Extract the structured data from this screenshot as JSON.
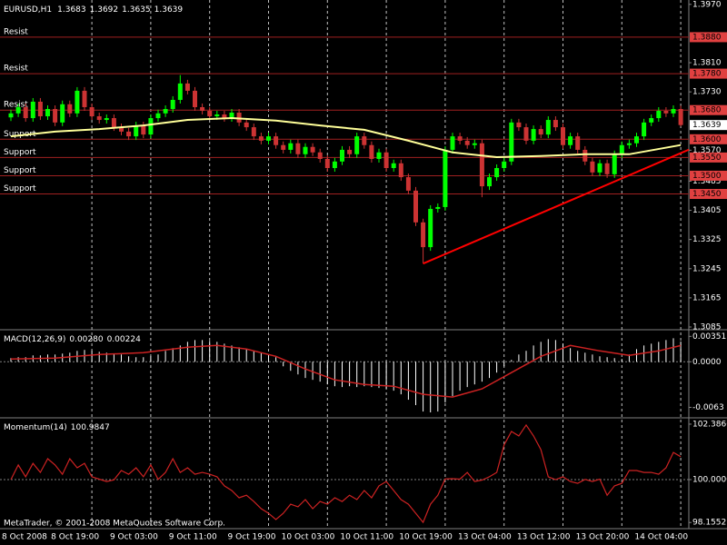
{
  "chart_data": [
    {
      "type": "candlestick",
      "title": "EURUSD,H1",
      "categories": [
        "8 Oct 2008",
        null,
        null,
        null,
        null,
        null,
        null,
        null,
        null,
        null,
        null,
        "8 Oct 19:00",
        null,
        null,
        null,
        null,
        null,
        null,
        null,
        "9 Oct 03:00",
        null,
        null,
        null,
        null,
        null,
        null,
        null,
        "9 Oct 11:00",
        null,
        null,
        null,
        null,
        null,
        null,
        null,
        "9 Oct 19:00",
        null,
        null,
        null,
        null,
        null,
        null,
        null,
        "10 Oct 03:00",
        null,
        null,
        null,
        null,
        null,
        null,
        null,
        "10 Oct 11:00",
        null,
        null,
        null,
        null,
        null,
        null,
        null,
        "10 Oct 19:00",
        null,
        null,
        null,
        null,
        null,
        null,
        null,
        "13 Oct 04:00",
        null,
        null,
        null,
        null,
        null,
        null,
        null,
        "13 Oct 12:00",
        null,
        null,
        null,
        null,
        null,
        null,
        null,
        "13 Oct 20:00",
        null,
        null,
        null,
        null,
        null,
        null,
        null,
        "14 Oct 04:00"
      ],
      "open": [
        1.366,
        1.3671,
        1.3688,
        1.3658,
        1.3703,
        1.3663,
        1.3683,
        1.3646,
        1.3696,
        1.3671,
        1.3733,
        1.3688,
        1.3663,
        1.3653,
        1.3658,
        1.3633,
        1.3621,
        1.3608,
        1.3638,
        1.3613,
        1.3658,
        1.3671,
        1.3683,
        1.3708,
        1.3753,
        1.3733,
        1.3688,
        1.3678,
        1.3663,
        1.3668,
        1.3658,
        1.3673,
        1.3646,
        1.3633,
        1.3608,
        1.3596,
        1.3608,
        1.3584,
        1.3571,
        1.3589,
        1.3559,
        1.3579,
        1.3564,
        1.3546,
        1.3521,
        1.3539,
        1.3571,
        1.3559,
        1.3608,
        1.3584,
        1.3546,
        1.3564,
        1.3521,
        1.3534,
        1.3496,
        1.3459,
        1.3372,
        1.3304,
        1.3409,
        1.3414,
        1.3571,
        1.3608,
        1.3596,
        1.3584,
        1.3589,
        1.3471,
        1.3496,
        1.3521,
        1.3539,
        1.3646,
        1.3633,
        1.3596,
        1.3628,
        1.3613,
        1.3653,
        1.3633,
        1.3584,
        1.3608,
        1.3571,
        1.3539,
        1.3509,
        1.3534,
        1.3504,
        1.3559,
        1.3584,
        1.3589,
        1.3608,
        1.3646,
        1.3658,
        1.3678,
        1.3671,
        1.3683
      ],
      "high": [
        1.3681,
        1.3698,
        1.3698,
        1.3713,
        1.3713,
        1.3693,
        1.3693,
        1.3706,
        1.3706,
        1.3743,
        1.3743,
        1.3698,
        1.3673,
        1.3668,
        1.3668,
        1.3643,
        1.3631,
        1.3648,
        1.3648,
        1.3668,
        1.3681,
        1.3693,
        1.3718,
        1.3776,
        1.3763,
        1.3743,
        1.3698,
        1.3688,
        1.3678,
        1.3678,
        1.3683,
        1.3683,
        1.3656,
        1.3643,
        1.3618,
        1.3618,
        1.3618,
        1.3594,
        1.3599,
        1.3599,
        1.3589,
        1.3589,
        1.3574,
        1.3556,
        1.3549,
        1.3581,
        1.3581,
        1.3618,
        1.3618,
        1.3594,
        1.3574,
        1.3574,
        1.3544,
        1.3544,
        1.3506,
        1.3469,
        1.3382,
        1.3419,
        1.3424,
        1.3581,
        1.3618,
        1.3618,
        1.3606,
        1.3599,
        1.3599,
        1.3506,
        1.3531,
        1.3549,
        1.3656,
        1.3656,
        1.3643,
        1.3638,
        1.3638,
        1.3663,
        1.3663,
        1.3643,
        1.3618,
        1.3618,
        1.3581,
        1.3549,
        1.3544,
        1.3544,
        1.3569,
        1.3594,
        1.3599,
        1.3618,
        1.3656,
        1.3668,
        1.3688,
        1.3688,
        1.3693,
        1.3692
      ],
      "low": [
        1.365,
        1.3661,
        1.3648,
        1.3648,
        1.3653,
        1.3653,
        1.3636,
        1.3636,
        1.3661,
        1.3661,
        1.3678,
        1.3653,
        1.3643,
        1.3643,
        1.3623,
        1.3611,
        1.3598,
        1.3598,
        1.3603,
        1.3603,
        1.3648,
        1.3661,
        1.3673,
        1.3698,
        1.3723,
        1.3678,
        1.3668,
        1.3653,
        1.3653,
        1.3648,
        1.3648,
        1.3636,
        1.3623,
        1.3598,
        1.3586,
        1.3586,
        1.3574,
        1.3561,
        1.3561,
        1.3549,
        1.3549,
        1.3554,
        1.3536,
        1.3511,
        1.3511,
        1.3529,
        1.3549,
        1.3549,
        1.3574,
        1.3536,
        1.3536,
        1.3511,
        1.3511,
        1.3486,
        1.3449,
        1.3362,
        1.3259,
        1.3294,
        1.3399,
        1.3404,
        1.3561,
        1.3586,
        1.3574,
        1.3574,
        1.3441,
        1.3461,
        1.3486,
        1.3511,
        1.3529,
        1.3623,
        1.3586,
        1.3586,
        1.3603,
        1.3603,
        1.3623,
        1.3574,
        1.3574,
        1.3561,
        1.3529,
        1.3499,
        1.3499,
        1.3494,
        1.3494,
        1.3549,
        1.3574,
        1.3579,
        1.3598,
        1.3636,
        1.3648,
        1.3661,
        1.3661,
        1.3635
      ],
      "close": [
        1.3671,
        1.3688,
        1.3658,
        1.3703,
        1.3663,
        1.3683,
        1.3646,
        1.3696,
        1.3671,
        1.3733,
        1.3688,
        1.3663,
        1.3653,
        1.3658,
        1.3633,
        1.3621,
        1.3608,
        1.3638,
        1.3613,
        1.3658,
        1.3671,
        1.3683,
        1.3708,
        1.3753,
        1.3733,
        1.3688,
        1.3678,
        1.3663,
        1.3668,
        1.3658,
        1.3673,
        1.3646,
        1.3633,
        1.3608,
        1.3596,
        1.3608,
        1.3584,
        1.3571,
        1.3589,
        1.3559,
        1.3579,
        1.3564,
        1.3546,
        1.3521,
        1.3539,
        1.3571,
        1.3559,
        1.3608,
        1.3584,
        1.3546,
        1.3564,
        1.3521,
        1.3534,
        1.3496,
        1.3459,
        1.3372,
        1.3304,
        1.3409,
        1.3414,
        1.3571,
        1.3608,
        1.3596,
        1.3584,
        1.3589,
        1.3471,
        1.3496,
        1.3521,
        1.3539,
        1.3646,
        1.3633,
        1.3596,
        1.3628,
        1.3613,
        1.3653,
        1.3633,
        1.3584,
        1.3608,
        1.3571,
        1.3539,
        1.3509,
        1.3534,
        1.3504,
        1.3559,
        1.3584,
        1.3589,
        1.3608,
        1.3646,
        1.3658,
        1.3678,
        1.3671,
        1.3683,
        1.3639
      ],
      "up_color": "#00ff00",
      "down_color": "#cc3333",
      "lines": [
        {
          "color": "#ffff99",
          "x": [
            0,
            6,
            12,
            18,
            24,
            30,
            36,
            42,
            48,
            54,
            60,
            66,
            72,
            78,
            84,
            91
          ],
          "values": [
            1.3608,
            1.3621,
            1.3628,
            1.3638,
            1.3653,
            1.3658,
            1.3651,
            1.3638,
            1.3626,
            1.3596,
            1.3564,
            1.3551,
            1.3554,
            1.3559,
            1.3559,
            1.3584
          ]
        },
        {
          "color": "#ff0000",
          "x": [
            56,
            91
          ],
          "values": [
            1.3259,
            1.3562
          ],
          "extend": true
        }
      ],
      "levels": [
        {
          "text": "Resist",
          "value": 1.388,
          "label": "1.3880"
        },
        {
          "text": "Resist",
          "value": 1.378,
          "label": "1.3780"
        },
        {
          "text": "Resist",
          "value": 1.368,
          "label": "1.3680"
        },
        {
          "text": "Support",
          "value": 1.36,
          "label": "1.3600"
        },
        {
          "text": "Support",
          "value": 1.355,
          "label": "1.3550"
        },
        {
          "text": "Support",
          "value": 1.35,
          "label": "1.3500"
        },
        {
          "text": "Support",
          "value": 1.345,
          "label": "1.3450"
        }
      ],
      "level_color": "#a02020",
      "level_label_color": "#e04040",
      "ylim": [
        1.308,
        1.3982
      ],
      "yticks": [
        {
          "value": 1.397,
          "label": "1.3970"
        },
        {
          "value": 1.381,
          "label": "1.3810"
        },
        {
          "value": 1.373,
          "label": "1.3730"
        },
        {
          "value": 1.357,
          "label": "1.3570"
        },
        1.3485,
        1.3405,
        1.3325,
        1.3245,
        1.3165,
        1.3085
      ]
    },
    {
      "type": "macd",
      "title": "MACD(12,26,9)",
      "readout": [
        {
          "value": 0.0028,
          "label": "0.00280"
        },
        0.00224
      ],
      "histogram": {
        "color": "#ffffff",
        "values": [
          0.0005,
          0.00063,
          0.00063,
          0.00088,
          0.00088,
          0.001,
          0.001,
          0.00113,
          0.00125,
          0.0015,
          0.00163,
          0.0015,
          0.00138,
          0.00125,
          0.00113,
          0.001,
          0.00075,
          0.00063,
          0.00063,
          0.00075,
          0.001,
          0.0015,
          0.00188,
          0.00225,
          0.00275,
          0.003,
          0.003,
          0.00288,
          0.00275,
          0.0025,
          0.00225,
          0.002,
          0.00175,
          0.0015,
          0.00125,
          0.001,
          0.00063,
          -0.00063,
          -0.00125,
          -0.00175,
          -0.00225,
          -0.0025,
          -0.00275,
          -0.00313,
          -0.00338,
          -0.0035,
          -0.00338,
          -0.0035,
          -0.00338,
          -0.0035,
          -0.00363,
          -0.00375,
          -0.004,
          -0.0045,
          -0.00525,
          -0.006,
          -0.00688,
          -0.007,
          -0.00688,
          -0.00563,
          -0.00475,
          -0.004,
          -0.0035,
          -0.00313,
          -0.00275,
          -0.00225,
          -0.0015,
          -0.00063,
          0.00025,
          0.001,
          0.0015,
          0.00225,
          0.00275,
          0.00313,
          0.003,
          0.0025,
          0.00188,
          0.0015,
          0.00125,
          0.001,
          0.00075,
          0.00063,
          0.0005,
          0.00038,
          0.001,
          0.00175,
          0.00225,
          0.0025,
          0.00275,
          0.003,
          0.00325,
          0.0028
        ]
      },
      "signal": {
        "color": "#cc2222",
        "x": [
          0,
          6,
          12,
          18,
          24,
          28,
          32,
          36,
          40,
          44,
          48,
          52,
          56,
          60,
          64,
          68,
          72,
          76,
          80,
          84,
          88,
          91
        ],
        "values": [
          0.00038,
          0.0005,
          0.001,
          0.00125,
          0.002,
          0.00225,
          0.00175,
          0.00075,
          -0.001,
          -0.0025,
          -0.00313,
          -0.00338,
          -0.0045,
          -0.00488,
          -0.00375,
          -0.0015,
          0.00075,
          0.00225,
          0.0015,
          0.00088,
          0.0015,
          0.00224
        ]
      },
      "levels": [
        0
      ],
      "level_color": "#808080",
      "ylim": [
        -0.0075,
        0.0043
      ],
      "yticks": [
        0.00351,
        {
          "value": 0,
          "label": "0.0000"
        },
        -0.0063
      ]
    },
    {
      "type": "line",
      "title": "Momentum(14)",
      "color": "#cc2222",
      "values": [
        100.0,
        100.63,
        100.12,
        100.7,
        100.31,
        100.9,
        100.63,
        100.23,
        100.9,
        100.51,
        100.7,
        100.12,
        100.02,
        99.92,
        99.99,
        100.39,
        100.23,
        100.51,
        100.12,
        100.63,
        100.01,
        100.31,
        100.9,
        100.31,
        100.51,
        100.23,
        100.31,
        100.23,
        100.12,
        99.73,
        99.53,
        99.22,
        99.33,
        99.06,
        98.75,
        98.55,
        98.28,
        98.55,
        98.94,
        98.83,
        99.14,
        98.75,
        99.06,
        98.94,
        99.22,
        99.06,
        99.33,
        99.14,
        99.53,
        99.22,
        99.73,
        99.92,
        99.53,
        99.14,
        98.94,
        98.55,
        98.16,
        98.94,
        99.33,
        100.03,
        100.04,
        100.02,
        100.31,
        99.92,
        99.98,
        100.12,
        100.31,
        101.49,
        102.07,
        101.88,
        102.35,
        101.88,
        101.29,
        100.12,
        100.0,
        100.12,
        99.92,
        99.84,
        100.01,
        99.92,
        100.02,
        99.33,
        99.73,
        99.84,
        100.39,
        100.39,
        100.31,
        100.31,
        100.23,
        100.51,
        101.17,
        100.9847
      ],
      "levels": [
        100
      ],
      "level_color": "#808080",
      "ylim": [
        97.89,
        102.58
      ],
      "yticks": [
        102.3866,
        {
          "value": 100,
          "label": "100.0000"
        },
        98.1552
      ]
    }
  ],
  "footer": "MetaTrader, © 2001-2008 MetaQuotes Software Corp."
}
